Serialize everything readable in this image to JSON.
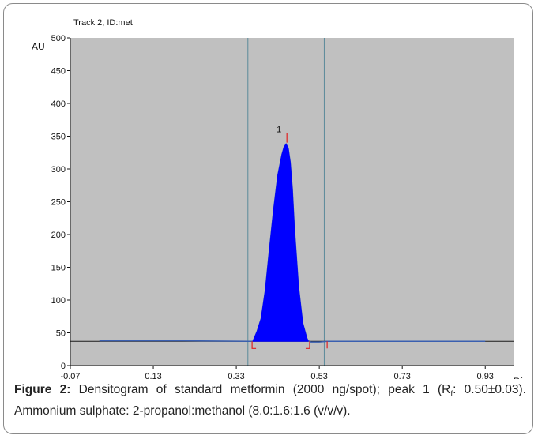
{
  "chart_data": {
    "type": "area",
    "title": "Track 2, ID:met",
    "ylabel": "AU",
    "xlabel": "Rf",
    "xlim": [
      -0.07,
      1.0
    ],
    "ylim": [
      0,
      500
    ],
    "x_ticks": [
      "-0.07",
      "0.13",
      "0.33",
      "0.53",
      "0.73",
      "0.93"
    ],
    "x_tick_values": [
      -0.07,
      0.13,
      0.33,
      0.53,
      0.73,
      0.93
    ],
    "y_ticks": [
      "0",
      "50",
      "100",
      "150",
      "200",
      "250",
      "300",
      "350",
      "400",
      "450",
      "500"
    ],
    "y_tick_values": [
      0,
      50,
      100,
      150,
      200,
      250,
      300,
      350,
      400,
      450,
      500
    ],
    "baseline_au": 37,
    "window_lines_rf": [
      0.358,
      0.542
    ],
    "peaks": [
      {
        "label": "1",
        "start_rf": 0.37,
        "max_rf": 0.452,
        "end_rf": 0.503,
        "max_au": 345
      }
    ],
    "series": [
      {
        "x": [
          0.0,
          0.2,
          0.36,
          0.37,
          0.38,
          0.39,
          0.4,
          0.41,
          0.42,
          0.43,
          0.44,
          0.445,
          0.45,
          0.455,
          0.46,
          0.465,
          0.47,
          0.48,
          0.49,
          0.5,
          0.503,
          0.51,
          0.53,
          0.55,
          0.7,
          0.93
        ],
        "y": [
          38,
          38,
          37,
          37,
          52,
          72,
          115,
          178,
          238,
          290,
          322,
          333,
          338,
          332,
          310,
          270,
          210,
          120,
          65,
          42,
          38,
          36,
          36,
          37,
          37,
          37
        ]
      }
    ],
    "colors": {
      "plot_background": "#c0c0c0",
      "peak_fill": "#0000ff",
      "baseline": "#1a1a1a",
      "trace": "#3a5fb0",
      "window_line": "#5a8a9a",
      "peak_marker": "#e02020"
    },
    "grid": false
  },
  "caption": {
    "label": "Figure 2:",
    "text_before_sub": " Densitogram of standard metformin (2000 ng/spot); peak 1 (R",
    "sub": "f",
    "text_after_sub": ": 0.50±0.03). Ammonium sulphate: 2-propanol:methanol (8.0:1.6:1.6 (v/v/v)."
  }
}
